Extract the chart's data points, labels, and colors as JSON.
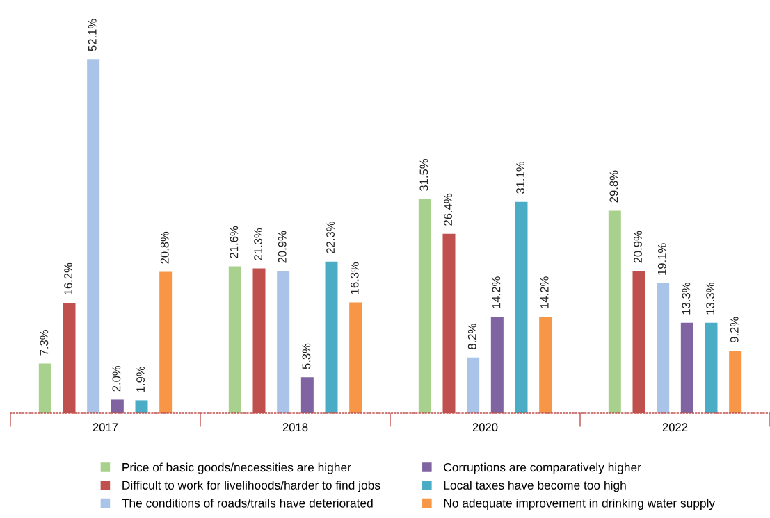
{
  "chart_data": {
    "type": "bar",
    "categories": [
      "2017",
      "2018",
      "2020",
      "2022"
    ],
    "series": [
      {
        "name": "Price of basic goods/necessities are higher",
        "color": "#a9d18e",
        "values": [
          7.3,
          21.6,
          31.5,
          29.8
        ],
        "value_labels": [
          "7.3%",
          "21.6%",
          "31.5%",
          "29.8%"
        ]
      },
      {
        "name": "Difficult to work for livelihoods/harder to find jobs",
        "color": "#c0504d",
        "values": [
          16.2,
          21.3,
          26.4,
          20.9
        ],
        "value_labels": [
          "16.2%",
          "21.3%",
          "26.4%",
          "20.9%"
        ]
      },
      {
        "name": "The conditions of roads/trails have deteriorated",
        "color": "#a9c4e8",
        "values": [
          52.1,
          20.9,
          8.2,
          19.1
        ],
        "value_labels": [
          "52.1%",
          "20.9%",
          "8.2%",
          "19.1%"
        ]
      },
      {
        "name": "Corruptions are comparatively higher",
        "color": "#8064a2",
        "values": [
          2.0,
          5.3,
          14.2,
          13.3
        ],
        "value_labels": [
          "2.0%",
          "5.3%",
          "14.2%",
          "13.3%"
        ]
      },
      {
        "name": "Local taxes have become too high",
        "color": "#4bacc6",
        "values": [
          1.9,
          22.3,
          31.1,
          13.3
        ],
        "value_labels": [
          "1.9%",
          "22.3%",
          "31.1%",
          "13.3%"
        ]
      },
      {
        "name": "No adequate improvement in drinking water supply",
        "color": "#f79646",
        "values": [
          20.8,
          16.3,
          14.2,
          9.2
        ],
        "value_labels": [
          "20.8%",
          "16.3%",
          "14.2%",
          "9.2%"
        ]
      }
    ],
    "tick_labels": "x",
    "grid": false,
    "legend": "bottom"
  }
}
